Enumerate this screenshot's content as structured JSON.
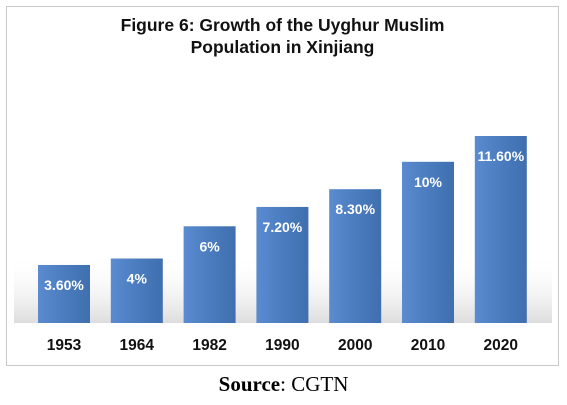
{
  "chart_data": {
    "type": "bar",
    "title_line1": "Figure 6: Growth of the Uyghur Muslim",
    "title_line2": "Population in Xinjiang",
    "categories": [
      "1953",
      "1964",
      "1982",
      "1990",
      "2000",
      "2010",
      "2020"
    ],
    "values": [
      3.6,
      4,
      6,
      7.2,
      8.3,
      10,
      11.6
    ],
    "data_labels": [
      "3.60%",
      "4%",
      "6%",
      "7.20%",
      "8.30%",
      "10%",
      "11.60%"
    ],
    "xlabel": "",
    "ylabel": "",
    "ylim": [
      0,
      11.6
    ],
    "grid": false,
    "legend": "none",
    "bar_color": "#4a7cbf",
    "label_color": "#ffffff"
  },
  "source": {
    "label": "Source",
    "separator": ": ",
    "value": "CGTN"
  }
}
